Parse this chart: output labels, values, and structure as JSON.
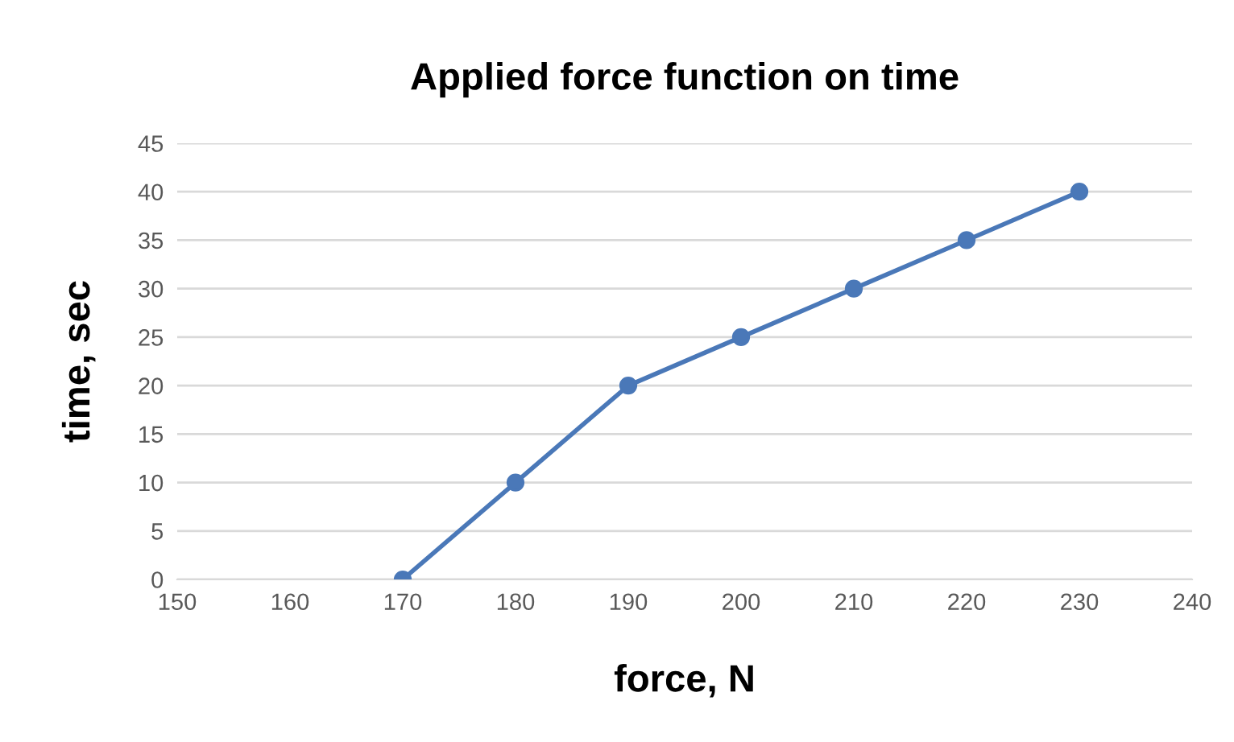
{
  "chart_data": {
    "type": "line",
    "title": "Applied force function on time",
    "xlabel": "force, N",
    "ylabel": "time, sec",
    "x": [
      170,
      180,
      190,
      200,
      210,
      220,
      230
    ],
    "series": [
      {
        "color": "#4a78b8",
        "values": [
          0,
          10,
          20,
          25,
          30,
          35,
          40
        ]
      }
    ],
    "xlim": [
      150,
      240
    ],
    "xticks": [
      150,
      160,
      170,
      180,
      190,
      200,
      210,
      220,
      230,
      240
    ],
    "ylim": [
      0,
      45
    ],
    "yticks": [
      0,
      5,
      10,
      15,
      20,
      25,
      30,
      35,
      40,
      45
    ],
    "grid": "y",
    "marker": "circle",
    "line_style": "solid",
    "legend": false
  }
}
